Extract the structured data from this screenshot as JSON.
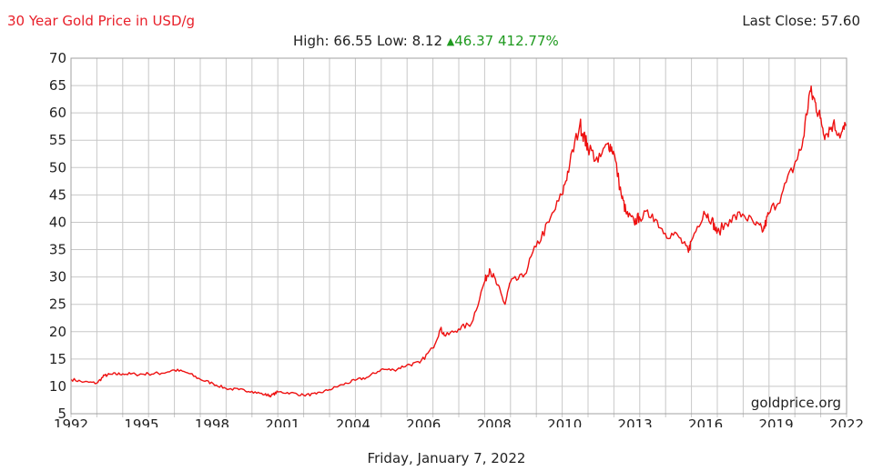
{
  "header": {
    "title": "30 Year Gold Price in USD/g",
    "last_close_label": "Last Close:",
    "last_close_value": "57.60",
    "high_label": "High:",
    "high_value": "66.55",
    "low_label": "Low:",
    "low_value": "8.12",
    "change_value": "46.37",
    "change_pct": "412.77%"
  },
  "footer": {
    "date": "Friday, January 7, 2022"
  },
  "watermark": "goldprice.org",
  "colors": {
    "line": "#ee1111",
    "title": "#e8202a",
    "grid": "#c8c8c8",
    "up": "#1f9a1f"
  },
  "chart_data": {
    "type": "line",
    "title": "30 Year Gold Price in USD/g",
    "xlabel": "",
    "ylabel": "",
    "xlim": [
      1992.0,
      2022.02
    ],
    "ylim": [
      5,
      70
    ],
    "y_ticks": [
      5,
      10,
      15,
      20,
      25,
      30,
      35,
      40,
      45,
      50,
      55,
      60,
      65,
      70
    ],
    "x_tick_labels": [
      "1992",
      "1995",
      "1998",
      "2001",
      "2004",
      "2006",
      "2008",
      "2010",
      "2013",
      "2016",
      "2019",
      "2022"
    ],
    "grid": true,
    "series": [
      {
        "values_note": "",
        "x": [
          1992.0,
          1992.5,
          1993.0,
          1993.3,
          1993.6,
          1994.0,
          1994.5,
          1995.0,
          1995.5,
          1996.0,
          1996.5,
          1997.0,
          1997.5,
          1998.0,
          1998.5,
          1999.0,
          1999.5,
          1999.75,
          2000.0,
          2000.5,
          2001.0,
          2001.5,
          2002.0,
          2002.5,
          2003.0,
          2003.5,
          2004.0,
          2004.5,
          2005.0,
          2005.5,
          2006.0,
          2006.3,
          2006.5,
          2007.0,
          2007.5,
          2008.0,
          2008.2,
          2008.5,
          2008.8,
          2009.0,
          2009.5,
          2010.0,
          2010.5,
          2011.0,
          2011.3,
          2011.7,
          2011.9,
          2012.0,
          2012.4,
          2012.8,
          2013.0,
          2013.3,
          2013.5,
          2013.8,
          2014.0,
          2014.5,
          2015.0,
          2015.5,
          2015.9,
          2016.0,
          2016.5,
          2016.8,
          2017.0,
          2017.5,
          2018.0,
          2018.5,
          2018.8,
          2019.0,
          2019.5,
          2020.0,
          2020.3,
          2020.6,
          2020.8,
          2021.0,
          2021.2,
          2021.5,
          2021.8,
          2022.0
        ],
        "y": [
          11.3,
          10.8,
          10.6,
          12.0,
          12.2,
          12.3,
          12.2,
          12.3,
          12.4,
          13.0,
          12.5,
          11.3,
          10.5,
          9.6,
          9.4,
          9.1,
          8.5,
          8.3,
          9.0,
          8.8,
          8.4,
          8.6,
          9.4,
          10.3,
          11.1,
          11.7,
          13.1,
          13.0,
          13.9,
          14.3,
          17.0,
          20.5,
          19.2,
          20.5,
          21.5,
          29.0,
          31.5,
          28.5,
          25.0,
          29.0,
          30.0,
          35.5,
          40.0,
          45.0,
          50.5,
          58.0,
          55.0,
          54.0,
          51.0,
          54.5,
          53.0,
          45.0,
          41.5,
          40.0,
          41.0,
          41.5,
          38.0,
          37.5,
          34.5,
          36.5,
          42.0,
          40.5,
          38.0,
          40.5,
          41.5,
          39.5,
          38.5,
          41.5,
          45.0,
          50.5,
          54.0,
          64.0,
          62.0,
          59.0,
          56.0,
          58.0,
          56.0,
          57.6
        ]
      }
    ]
  }
}
